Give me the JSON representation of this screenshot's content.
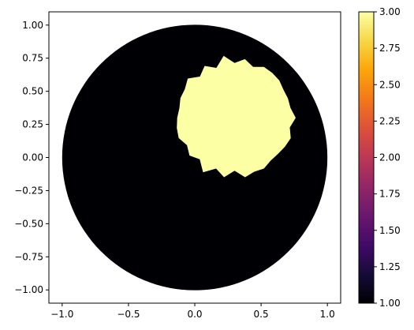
{
  "chart_data": {
    "type": "heatmap",
    "title": "",
    "xlabel": "",
    "ylabel": "",
    "xlim": [
      -1.1,
      1.1
    ],
    "ylim": [
      -1.1,
      1.1
    ],
    "x_ticks": [
      -1.0,
      -0.5,
      0.0,
      0.5,
      1.0
    ],
    "x_tick_labels": [
      "−1.0",
      "−0.5",
      "0.0",
      "0.5",
      "1.0"
    ],
    "y_ticks": [
      -1.0,
      -0.75,
      -0.5,
      -0.25,
      0.0,
      0.25,
      0.5,
      0.75,
      1.0
    ],
    "y_tick_labels": [
      "−1.00",
      "−0.75",
      "−0.50",
      "−0.25",
      "0.00",
      "0.25",
      "0.50",
      "0.75",
      "1.00"
    ],
    "grid": false,
    "colormap": "inferno",
    "colorbar": {
      "range": [
        1.0,
        3.0
      ],
      "ticks": [
        1.0,
        1.25,
        1.5,
        1.75,
        2.0,
        2.25,
        2.5,
        2.75,
        3.0
      ],
      "tick_labels": [
        "1.00",
        "1.25",
        "1.50",
        "1.75",
        "2.00",
        "2.25",
        "2.50",
        "2.75",
        "3.00"
      ]
    },
    "regions": [
      {
        "shape": "disk",
        "center": [
          0.0,
          0.0
        ],
        "radius": 1.0,
        "value": 1.0,
        "color": "#000004"
      },
      {
        "shape": "disk-jagged",
        "center": [
          0.3,
          0.3
        ],
        "radius": 0.45,
        "value": 3.0,
        "color": "#fcffa4"
      }
    ]
  }
}
